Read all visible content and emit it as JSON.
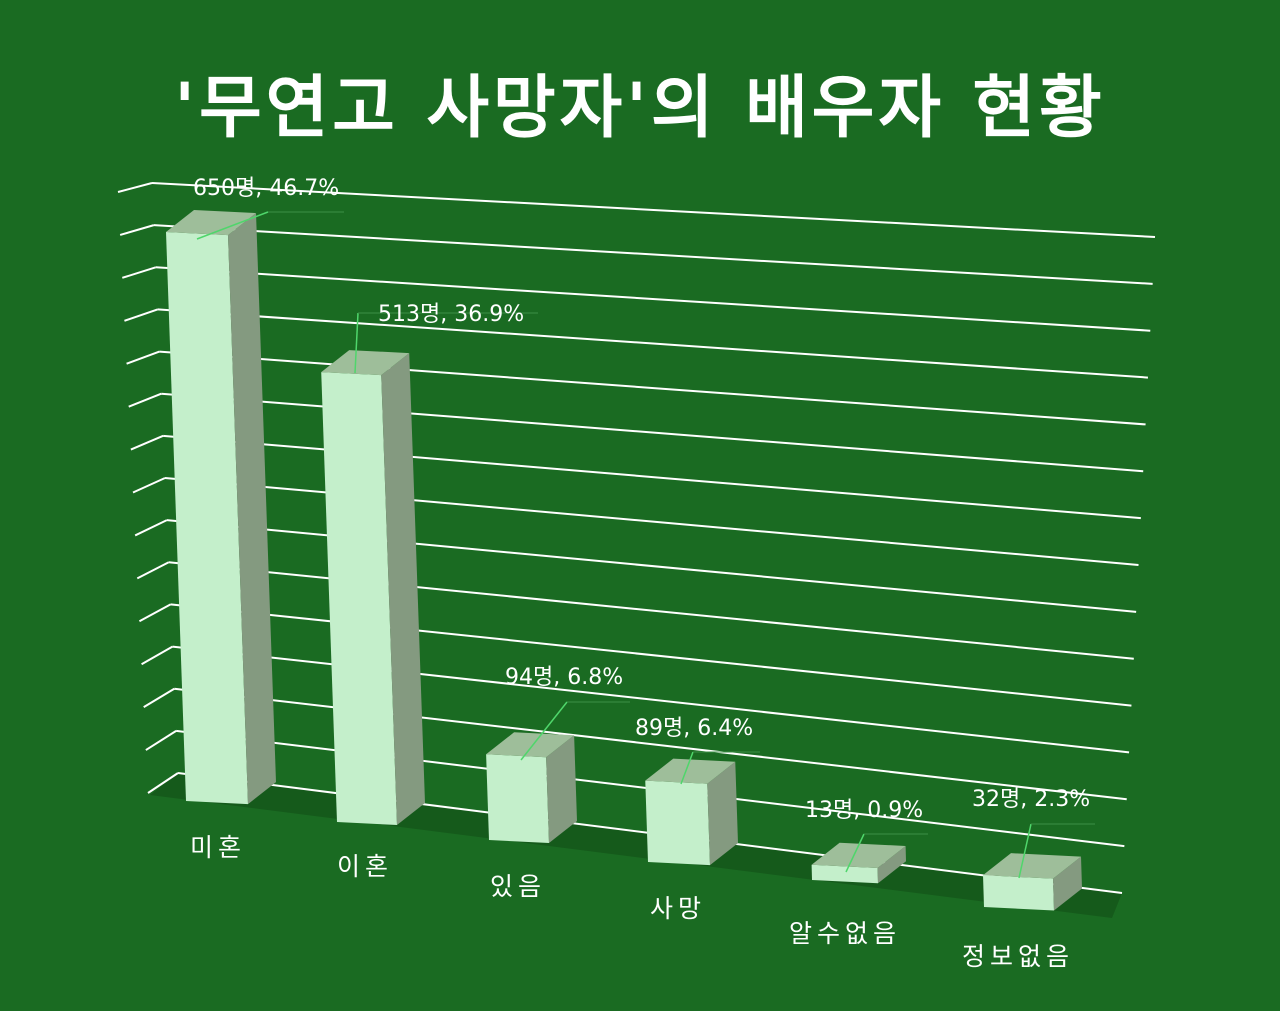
{
  "chart_data": {
    "type": "bar",
    "title": "'무연고 사망자'의 배우자 현황",
    "categories": [
      "미혼",
      "이혼",
      "있음",
      "사망",
      "알수없음",
      "정보없음"
    ],
    "values": [
      650,
      513,
      94,
      89,
      13,
      32
    ],
    "percents": [
      "46.7%",
      "36.9%",
      "6.8%",
      "6.4%",
      "0.9%",
      "2.3%"
    ],
    "data_labels": [
      "650명, 46.7%",
      "513명, 36.9%",
      "94명, 6.8%",
      "89명, 6.4%",
      "13명, 0.9%",
      "32명, 2.3%"
    ],
    "ylim": [
      0,
      700
    ],
    "grid": true,
    "perspective": "3d-column",
    "colors": {
      "background": "#1a6b22",
      "bar_front": "#c4efcb",
      "bar_side": "#849a80",
      "bar_top": "#9ebe9a",
      "grid": "#ffffff",
      "leader_line": "#4fd66b",
      "text": "#ffffff"
    }
  }
}
